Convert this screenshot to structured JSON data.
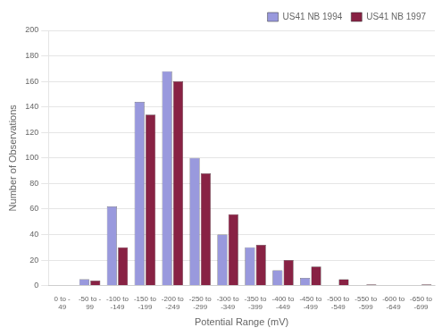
{
  "chart_data": {
    "type": "bar",
    "categories": [
      "0 to -\n49",
      "-50 to -\n99",
      "-100 to\n-149",
      "-150 to\n-199",
      "-200 to\n-249",
      "-250 to\n-299",
      "-300 to\n-349",
      "-350 to\n-399",
      "-400 to\n-449",
      "-450 to\n-499",
      "-500 to\n-549",
      "-550 to\n-599",
      "-600 to\n-649",
      "-650 to\n-699"
    ],
    "series": [
      {
        "name": "US41 NB 1994",
        "color": "#9999DD",
        "values": [
          0,
          5,
          62,
          144,
          168,
          100,
          40,
          30,
          12,
          6,
          0,
          0,
          0,
          0
        ]
      },
      {
        "name": "US41 NB 1997",
        "color": "#882244",
        "values": [
          0,
          4,
          30,
          134,
          160,
          88,
          56,
          32,
          20,
          15,
          5,
          1,
          0,
          1
        ]
      }
    ],
    "xlabel": "Potential Range (mV)",
    "ylabel": "Number of Observations",
    "ylim": [
      0,
      200
    ],
    "yticks": [
      0,
      20,
      40,
      60,
      80,
      100,
      120,
      140,
      160,
      180,
      200
    ],
    "grid": true,
    "legend": "upper right"
  }
}
